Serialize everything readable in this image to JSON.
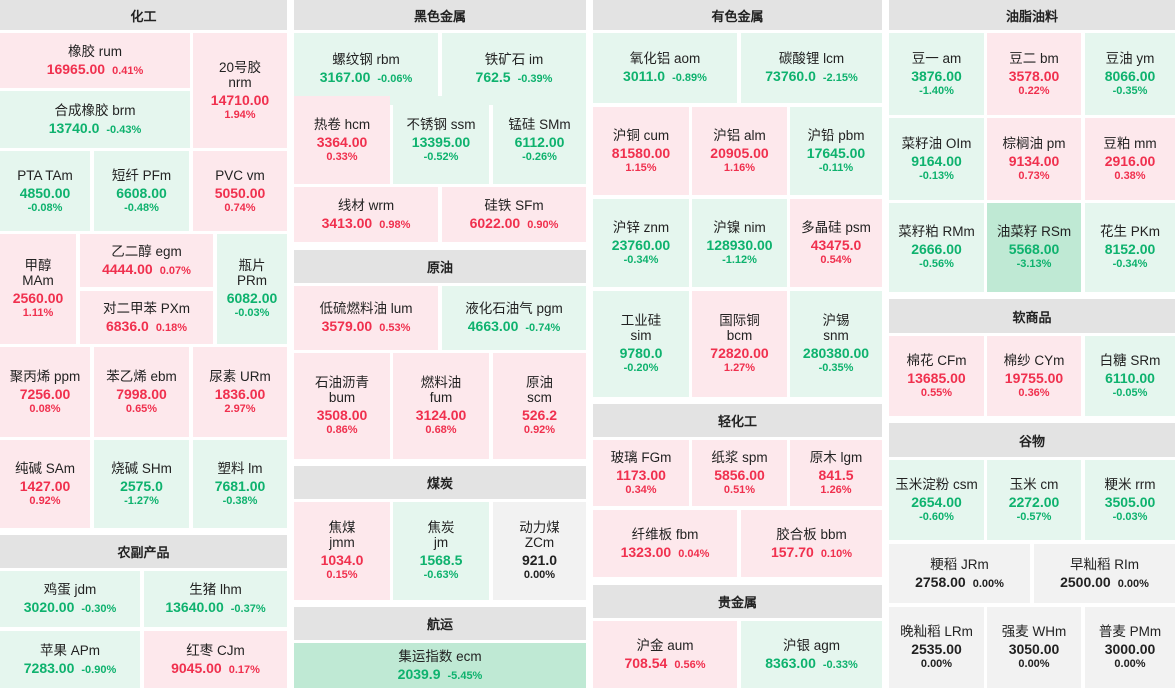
{
  "columns": [
    {
      "sections": [
        {
          "title": "化工",
          "items": [
            {
              "name": "橡胶  rum",
              "price": "16965.00",
              "change": "0.41%",
              "trend": "up"
            },
            {
              "name": "20号胶|nrm",
              "price": "14710.00",
              "change": "1.94%",
              "trend": "up"
            },
            {
              "name": "合成橡胶  brm",
              "price": "13740.0",
              "change": "-0.43%",
              "trend": "down"
            },
            {
              "name": "PTA  TAm",
              "price": "4850.00",
              "change": "-0.08%",
              "trend": "down"
            },
            {
              "name": "短纤  PFm",
              "price": "6608.00",
              "change": "-0.48%",
              "trend": "down"
            },
            {
              "name": "PVC  vm",
              "price": "5050.00",
              "change": "0.74%",
              "trend": "up"
            },
            {
              "name": "甲醇|MAm",
              "price": "2560.00",
              "change": "1.11%",
              "trend": "up"
            },
            {
              "name": "乙二醇  egm",
              "price": "4444.00",
              "change": "0.07%",
              "trend": "up"
            },
            {
              "name": "对二甲苯  PXm",
              "price": "6836.0",
              "change": "0.18%",
              "trend": "up"
            },
            {
              "name": "瓶片|PRm",
              "price": "6082.00",
              "change": "-0.03%",
              "trend": "down"
            },
            {
              "name": "聚丙烯  ppm",
              "price": "7256.00",
              "change": "0.08%",
              "trend": "up"
            },
            {
              "name": "苯乙烯  ebm",
              "price": "7998.00",
              "change": "0.65%",
              "trend": "up"
            },
            {
              "name": "尿素  URm",
              "price": "1836.00",
              "change": "2.97%",
              "trend": "up"
            },
            {
              "name": "纯碱  SAm",
              "price": "1427.00",
              "change": "0.92%",
              "trend": "up"
            },
            {
              "name": "烧碱  SHm",
              "price": "2575.0",
              "change": "-1.27%",
              "trend": "down"
            },
            {
              "name": "塑料  lm",
              "price": "7681.00",
              "change": "-0.38%",
              "trend": "down"
            }
          ]
        },
        {
          "title": "农副产品",
          "items": [
            {
              "name": "鸡蛋  jdm",
              "price": "3020.00",
              "change": "-0.30%",
              "trend": "down"
            },
            {
              "name": "生猪  lhm",
              "price": "13640.00",
              "change": "-0.37%",
              "trend": "down"
            },
            {
              "name": "苹果  APm",
              "price": "7283.00",
              "change": "-0.90%",
              "trend": "down"
            },
            {
              "name": "红枣  CJm",
              "price": "9045.00",
              "change": "0.17%",
              "trend": "up"
            }
          ]
        }
      ]
    },
    {
      "sections": [
        {
          "title": "黑色金属",
          "items": [
            {
              "name": "螺纹钢  rbm",
              "price": "3167.00",
              "change": "-0.06%",
              "trend": "down"
            },
            {
              "name": "铁矿石  im",
              "price": "762.5",
              "change": "-0.39%",
              "trend": "down"
            },
            {
              "name": "热卷  hcm",
              "price": "3364.00",
              "change": "0.33%",
              "trend": "up"
            },
            {
              "name": "不锈钢  ssm",
              "price": "13395.00",
              "change": "-0.52%",
              "trend": "down"
            },
            {
              "name": "锰硅  SMm",
              "price": "6112.00",
              "change": "-0.26%",
              "trend": "down"
            },
            {
              "name": "线材  wrm",
              "price": "3413.00",
              "change": "0.98%",
              "trend": "up"
            },
            {
              "name": "硅铁  SFm",
              "price": "6022.00",
              "change": "0.90%",
              "trend": "up"
            }
          ]
        },
        {
          "title": "原油",
          "items": [
            {
              "name": "低硫燃料油  lum",
              "price": "3579.00",
              "change": "0.53%",
              "trend": "up"
            },
            {
              "name": "液化石油气  pgm",
              "price": "4663.00",
              "change": "-0.74%",
              "trend": "down"
            },
            {
              "name": "石油沥青|bum",
              "price": "3508.00",
              "change": "0.86%",
              "trend": "up"
            },
            {
              "name": "燃料油|fum",
              "price": "3124.00",
              "change": "0.68%",
              "trend": "up"
            },
            {
              "name": "原油|scm",
              "price": "526.2",
              "change": "0.92%",
              "trend": "up"
            }
          ]
        },
        {
          "title": "煤炭",
          "items": [
            {
              "name": "焦煤|jmm",
              "price": "1034.0",
              "change": "0.15%",
              "trend": "up"
            },
            {
              "name": "焦炭|jm",
              "price": "1568.5",
              "change": "-0.63%",
              "trend": "down"
            },
            {
              "name": "动力煤|ZCm",
              "price": "921.0",
              "change": "0.00%",
              "trend": "flat"
            }
          ]
        },
        {
          "title": "航运",
          "items": [
            {
              "name": "集运指数  ecm",
              "price": "2039.9",
              "change": "-5.45%",
              "trend": "bigdown"
            }
          ]
        }
      ]
    },
    {
      "sections": [
        {
          "title": "有色金属",
          "items": [
            {
              "name": "氧化铝  aom",
              "price": "3011.0",
              "change": "-0.89%",
              "trend": "down"
            },
            {
              "name": "碳酸锂  lcm",
              "price": "73760.0",
              "change": "-2.15%",
              "trend": "down"
            },
            {
              "name": "沪铜  cum",
              "price": "81580.00",
              "change": "1.15%",
              "trend": "up"
            },
            {
              "name": "沪铝  alm",
              "price": "20905.00",
              "change": "1.16%",
              "trend": "up"
            },
            {
              "name": "沪铅  pbm",
              "price": "17645.00",
              "change": "-0.11%",
              "trend": "down"
            },
            {
              "name": "沪锌  znm",
              "price": "23760.00",
              "change": "-0.34%",
              "trend": "down"
            },
            {
              "name": "沪镍  nim",
              "price": "128930.00",
              "change": "-1.12%",
              "trend": "down"
            },
            {
              "name": "多晶硅  psm",
              "price": "43475.0",
              "change": "0.54%",
              "trend": "up"
            },
            {
              "name": "工业硅|sim",
              "price": "9780.0",
              "change": "-0.20%",
              "trend": "down"
            },
            {
              "name": "国际铜|bcm",
              "price": "72820.00",
              "change": "1.27%",
              "trend": "up"
            },
            {
              "name": "沪锡|snm",
              "price": "280380.00",
              "change": "-0.35%",
              "trend": "down"
            }
          ]
        },
        {
          "title": "轻化工",
          "items": [
            {
              "name": "玻璃  FGm",
              "price": "1173.00",
              "change": "0.34%",
              "trend": "up"
            },
            {
              "name": "纸浆  spm",
              "price": "5856.00",
              "change": "0.51%",
              "trend": "up"
            },
            {
              "name": "原木  lgm",
              "price": "841.5",
              "change": "1.26%",
              "trend": "up"
            },
            {
              "name": "纤维板  fbm",
              "price": "1323.00",
              "change": "0.04%",
              "trend": "up"
            },
            {
              "name": "胶合板  bbm",
              "price": "157.70",
              "change": "0.10%",
              "trend": "up"
            }
          ]
        },
        {
          "title": "贵金属",
          "items": [
            {
              "name": "沪金  aum",
              "price": "708.54",
              "change": "0.56%",
              "trend": "up"
            },
            {
              "name": "沪银  agm",
              "price": "8363.00",
              "change": "-0.33%",
              "trend": "down"
            }
          ]
        }
      ]
    },
    {
      "sections": [
        {
          "title": "油脂油料",
          "items": [
            {
              "name": "豆一  am",
              "price": "3876.00",
              "change": "-1.40%",
              "trend": "down"
            },
            {
              "name": "豆二  bm",
              "price": "3578.00",
              "change": "0.22%",
              "trend": "up"
            },
            {
              "name": "豆油  ym",
              "price": "8066.00",
              "change": "-0.35%",
              "trend": "down"
            },
            {
              "name": "菜籽油  OIm",
              "price": "9164.00",
              "change": "-0.13%",
              "trend": "down"
            },
            {
              "name": "棕榈油  pm",
              "price": "9134.00",
              "change": "0.73%",
              "trend": "up"
            },
            {
              "name": "豆粕  mm",
              "price": "2916.00",
              "change": "0.38%",
              "trend": "up"
            },
            {
              "name": "菜籽粕  RMm",
              "price": "2666.00",
              "change": "-0.56%",
              "trend": "down"
            },
            {
              "name": "油菜籽  RSm",
              "price": "5568.00",
              "change": "-3.13%",
              "trend": "bigdown"
            },
            {
              "name": "花生  PKm",
              "price": "8152.00",
              "change": "-0.34%",
              "trend": "down"
            }
          ]
        },
        {
          "title": "软商品",
          "items": [
            {
              "name": "棉花  CFm",
              "price": "13685.00",
              "change": "0.55%",
              "trend": "up"
            },
            {
              "name": "棉纱  CYm",
              "price": "19755.00",
              "change": "0.36%",
              "trend": "up"
            },
            {
              "name": "白糖  SRm",
              "price": "6110.00",
              "change": "-0.05%",
              "trend": "down"
            }
          ]
        },
        {
          "title": "谷物",
          "items": [
            {
              "name": "玉米淀粉  csm",
              "price": "2654.00",
              "change": "-0.60%",
              "trend": "down"
            },
            {
              "name": "玉米  cm",
              "price": "2272.00",
              "change": "-0.57%",
              "trend": "down"
            },
            {
              "name": "粳米  rrm",
              "price": "3505.00",
              "change": "-0.03%",
              "trend": "down"
            },
            {
              "name": "粳稻  JRm",
              "price": "2758.00",
              "change": "0.00%",
              "trend": "flat"
            },
            {
              "name": "早籼稻  RIm",
              "price": "2500.00",
              "change": "0.00%",
              "trend": "flat"
            },
            {
              "name": "晚籼稻  LRm",
              "price": "2535.00",
              "change": "0.00%",
              "trend": "flat"
            },
            {
              "name": "强麦  WHm",
              "price": "3050.00",
              "change": "0.00%",
              "trend": "flat"
            },
            {
              "name": "普麦  PMm",
              "price": "3000.00",
              "change": "0.00%",
              "trend": "flat"
            }
          ]
        }
      ]
    }
  ]
}
